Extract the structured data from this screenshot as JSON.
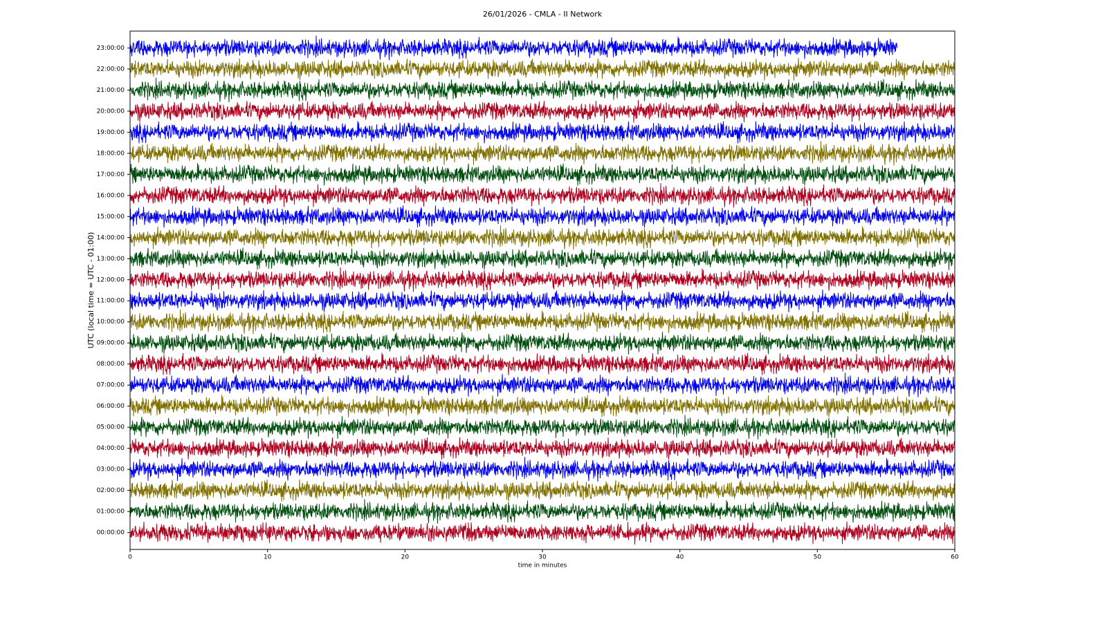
{
  "chart_data": {
    "type": "helicorder",
    "title": "26/01/2026 - CMLA - II Network",
    "xlabel": "time in minutes",
    "ylabel": "UTC (local time = UTC - 01:00)",
    "xlim": [
      0,
      60
    ],
    "xticks": [
      0,
      10,
      20,
      30,
      40,
      50,
      60
    ],
    "ylim": [
      23.8,
      -0.8
    ],
    "yticks": [
      {
        "value": 0,
        "label": "00:00:00"
      },
      {
        "value": 1,
        "label": "01:00:00"
      },
      {
        "value": 2,
        "label": "02:00:00"
      },
      {
        "value": 3,
        "label": "03:00:00"
      },
      {
        "value": 4,
        "label": "04:00:00"
      },
      {
        "value": 5,
        "label": "05:00:00"
      },
      {
        "value": 6,
        "label": "06:00:00"
      },
      {
        "value": 7,
        "label": "07:00:00"
      },
      {
        "value": 8,
        "label": "08:00:00"
      },
      {
        "value": 9,
        "label": "09:00:00"
      },
      {
        "value": 10,
        "label": "10:00:00"
      },
      {
        "value": 11,
        "label": "11:00:00"
      },
      {
        "value": 12,
        "label": "12:00:00"
      },
      {
        "value": 13,
        "label": "13:00:00"
      },
      {
        "value": 14,
        "label": "14:00:00"
      },
      {
        "value": 15,
        "label": "15:00:00"
      },
      {
        "value": 16,
        "label": "16:00:00"
      },
      {
        "value": 17,
        "label": "17:00:00"
      },
      {
        "value": 18,
        "label": "18:00:00"
      },
      {
        "value": 19,
        "label": "19:00:00"
      },
      {
        "value": 20,
        "label": "20:00:00"
      },
      {
        "value": 21,
        "label": "21:00:00"
      },
      {
        "value": 22,
        "label": "22:00:00"
      },
      {
        "value": 23,
        "label": "23:00:00"
      }
    ],
    "traces": [
      {
        "color": "#b0001e",
        "end": 60
      },
      {
        "color": "#004d0d",
        "end": 60
      },
      {
        "color": "#807000",
        "end": 60
      },
      {
        "color": "#0000f0",
        "end": 60
      },
      {
        "color": "#b0001e",
        "end": 60
      },
      {
        "color": "#004d0d",
        "end": 60
      },
      {
        "color": "#807000",
        "end": 60
      },
      {
        "color": "#0000f0",
        "end": 60
      },
      {
        "color": "#b0001e",
        "end": 60
      },
      {
        "color": "#004d0d",
        "end": 60
      },
      {
        "color": "#807000",
        "end": 60
      },
      {
        "color": "#0000f0",
        "end": 60
      },
      {
        "color": "#b0001e",
        "end": 60
      },
      {
        "color": "#004d0d",
        "end": 60
      },
      {
        "color": "#807000",
        "end": 60
      },
      {
        "color": "#0000f0",
        "end": 60
      },
      {
        "color": "#b0001e",
        "end": 60
      },
      {
        "color": "#004d0d",
        "end": 60
      },
      {
        "color": "#807000",
        "end": 60
      },
      {
        "color": "#0000f0",
        "end": 60
      },
      {
        "color": "#b0001e",
        "end": 60
      },
      {
        "color": "#004d0d",
        "end": 60
      },
      {
        "color": "#807000",
        "end": 60
      },
      {
        "color": "#0000f0",
        "end": 55.8
      }
    ]
  }
}
